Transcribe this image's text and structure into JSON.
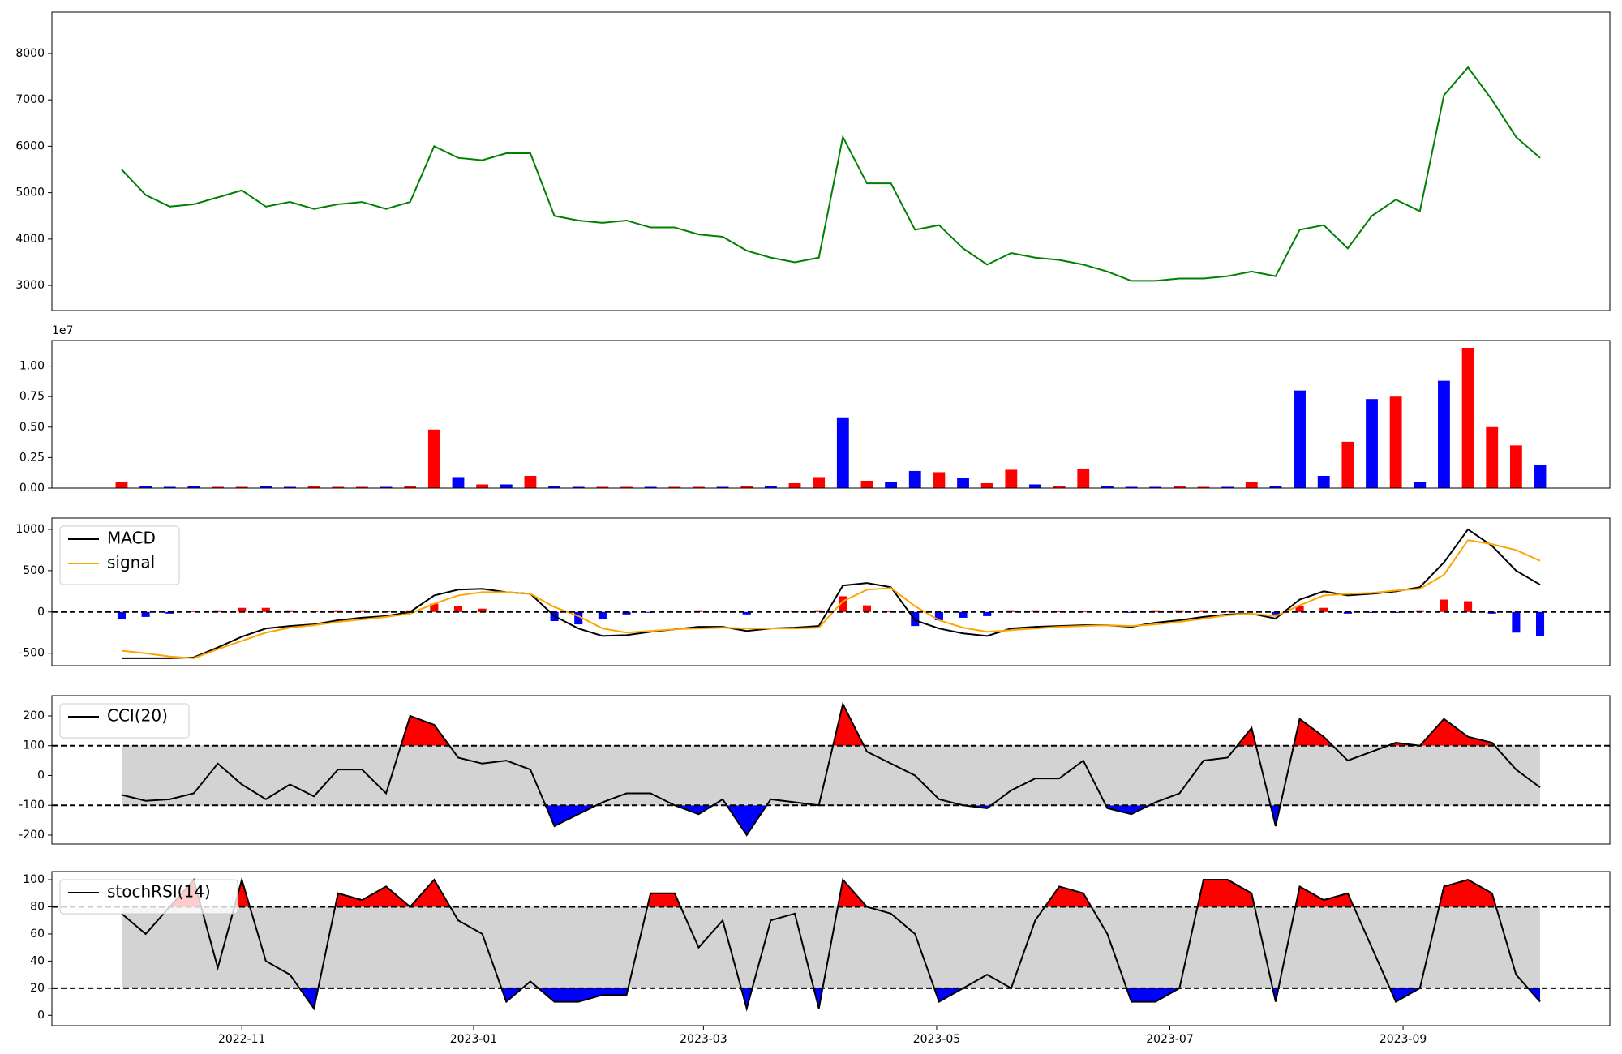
{
  "chart_data": [
    {
      "type": "line",
      "xlim": [
        -2.9,
        61.9
      ],
      "ylim": [
        2460,
        8890
      ],
      "yticks": [
        3000,
        4000,
        5000,
        6000,
        7000,
        8000
      ],
      "series": [
        {
          "color": "green",
          "values": [
            5500,
            4950,
            4700,
            4750,
            4900,
            5050,
            4700,
            4800,
            4650,
            4750,
            4800,
            4650,
            4800,
            6000,
            5750,
            5700,
            5850,
            5850,
            4500,
            4400,
            4350,
            4400,
            4250,
            4250,
            4100,
            4050,
            3750,
            3600,
            3500,
            3600,
            6200,
            5200,
            5200,
            4200,
            4300,
            3800,
            3450,
            3700,
            3600,
            3550,
            3450,
            3300,
            3100,
            3100,
            3150,
            3150,
            3200,
            3300,
            3200,
            4200,
            4300,
            3800,
            4500,
            4850,
            4600,
            7100,
            7700,
            7000,
            6200,
            5750
          ]
        }
      ]
    },
    {
      "type": "bar",
      "xlim": [
        -2.9,
        61.9
      ],
      "ylim": [
        0,
        1.21
      ],
      "y_offset_label": "1e7",
      "yticks": [
        {
          "value": 0,
          "label": "0.00"
        },
        {
          "value": 0.25,
          "label": "0.25"
        },
        {
          "value": 0.5,
          "label": "0.50"
        },
        {
          "value": 0.75,
          "label": "0.75"
        },
        {
          "value": 1.0,
          "label": "1.00"
        }
      ],
      "values": [
        0.05,
        0.02,
        0.01,
        0.02,
        0.01,
        0.01,
        0.02,
        0.01,
        0.02,
        0.01,
        0.01,
        0.01,
        0.02,
        0.48,
        0.09,
        0.03,
        0.03,
        0.1,
        0.02,
        0.01,
        0.01,
        0.01,
        0.01,
        0.01,
        0.01,
        0.01,
        0.02,
        0.02,
        0.04,
        0.09,
        0.58,
        0.06,
        0.05,
        0.14,
        0.13,
        0.08,
        0.04,
        0.15,
        0.03,
        0.02,
        0.16,
        0.02,
        0.01,
        0.01,
        0.02,
        0.01,
        0.01,
        0.05,
        0.02,
        0.8,
        0.1,
        0.38,
        0.73,
        0.75,
        0.05,
        0.88,
        1.15,
        0.5,
        0.35,
        0.19
      ],
      "colors": [
        "red",
        "blue",
        "blue",
        "blue",
        "red",
        "red",
        "blue",
        "blue",
        "red",
        "red",
        "red",
        "blue",
        "red",
        "red",
        "blue",
        "red",
        "blue",
        "red",
        "blue",
        "blue",
        "red",
        "red",
        "blue",
        "red",
        "red",
        "blue",
        "red",
        "blue",
        "red",
        "red",
        "blue",
        "red",
        "blue",
        "blue",
        "red",
        "blue",
        "red",
        "red",
        "blue",
        "red",
        "red",
        "blue",
        "blue",
        "blue",
        "red",
        "red",
        "blue",
        "red",
        "blue",
        "blue",
        "blue",
        "red",
        "blue",
        "red",
        "blue",
        "blue",
        "red",
        "red",
        "red",
        "blue"
      ]
    },
    {
      "type": "line",
      "xlim": [
        -2.9,
        61.9
      ],
      "ylim": [
        -650,
        1137
      ],
      "yticks": [
        -500,
        0,
        500,
        1000
      ],
      "hlines": [
        0
      ],
      "legend": "upper left",
      "series": [
        {
          "name": "MACD",
          "color": "black",
          "values": [
            -560,
            -560,
            -560,
            -550,
            -430,
            -300,
            -200,
            -170,
            -150,
            -100,
            -70,
            -50,
            0,
            200,
            270,
            280,
            240,
            220,
            -50,
            -200,
            -290,
            -280,
            -240,
            -210,
            -180,
            -180,
            -230,
            -200,
            -190,
            -170,
            320,
            350,
            300,
            -100,
            -200,
            -260,
            -290,
            -200,
            -180,
            -170,
            -160,
            -160,
            -180,
            -130,
            -100,
            -60,
            -30,
            -20,
            -80,
            150,
            250,
            200,
            220,
            250,
            300,
            600,
            1000,
            800,
            500,
            330
          ]
        },
        {
          "name": "signal",
          "color": "orange",
          "values": [
            -470,
            -500,
            -540,
            -560,
            -450,
            -350,
            -250,
            -190,
            -160,
            -120,
            -90,
            -60,
            -20,
            100,
            200,
            240,
            240,
            220,
            60,
            -50,
            -200,
            -250,
            -230,
            -210,
            -200,
            -190,
            -200,
            -200,
            -200,
            -190,
            130,
            270,
            290,
            70,
            -100,
            -190,
            -240,
            -220,
            -200,
            -180,
            -170,
            -160,
            -170,
            -150,
            -120,
            -80,
            -40,
            -20,
            -50,
            80,
            200,
            220,
            230,
            260,
            280,
            450,
            870,
            820,
            750,
            620
          ]
        }
      ],
      "histogram": {
        "positive_color": "red",
        "negative_color": "blue",
        "values": [
          -90,
          -60,
          -20,
          10,
          20,
          50,
          50,
          20,
          10,
          20,
          20,
          10,
          20,
          100,
          70,
          40,
          0,
          0,
          -110,
          -150,
          -90,
          -30,
          -10,
          0,
          20,
          10,
          -30,
          0,
          10,
          20,
          190,
          80,
          10,
          -170,
          -100,
          -70,
          -50,
          20,
          20,
          10,
          10,
          0,
          -10,
          20,
          20,
          20,
          10,
          0,
          -30,
          70,
          50,
          -20,
          -10,
          -10,
          20,
          150,
          130,
          -20,
          -250,
          -290
        ]
      }
    },
    {
      "type": "line",
      "xlim": [
        -2.9,
        61.9
      ],
      "ylim": [
        -230,
        268
      ],
      "yticks": [
        -200,
        -100,
        0,
        100,
        200
      ],
      "thresholds": [
        -100,
        100
      ],
      "band_color": "lightgray",
      "above_color": "red",
      "below_color": "blue",
      "legend": "upper left",
      "series": [
        {
          "name": "CCI(20)",
          "color": "black",
          "values": [
            -65,
            -85,
            -80,
            -60,
            40,
            -30,
            -80,
            -30,
            -70,
            20,
            20,
            -60,
            200,
            170,
            60,
            40,
            50,
            20,
            -170,
            -130,
            -90,
            -60,
            -60,
            -100,
            -130,
            -80,
            -200,
            -80,
            -90,
            -100,
            240,
            80,
            40,
            0,
            -80,
            -100,
            -110,
            -50,
            -10,
            -10,
            50,
            -110,
            -130,
            -90,
            -60,
            50,
            60,
            160,
            -170,
            190,
            130,
            50,
            80,
            110,
            100,
            190,
            130,
            110,
            20,
            -40
          ]
        }
      ]
    },
    {
      "type": "line",
      "xlim": [
        -2.9,
        61.9
      ],
      "ylim": [
        -7.6,
        106
      ],
      "yticks": [
        0,
        20,
        40,
        60,
        80,
        100
      ],
      "thresholds": [
        20,
        80
      ],
      "band_color": "lightgray",
      "above_color": "red",
      "below_color": "blue",
      "legend": "upper left",
      "xticks": [
        {
          "value": 5.0,
          "label": "2022-11"
        },
        {
          "value": 14.64,
          "label": "2023-01"
        },
        {
          "value": 24.2,
          "label": "2023-03"
        },
        {
          "value": 33.9,
          "label": "2023-05"
        },
        {
          "value": 43.6,
          "label": "2023-07"
        },
        {
          "value": 53.3,
          "label": "2023-09"
        }
      ],
      "series": [
        {
          "name": "stochRSI(14)",
          "color": "black",
          "values": [
            75,
            60,
            80,
            100,
            35,
            100,
            40,
            30,
            5,
            90,
            85,
            95,
            80,
            100,
            70,
            60,
            10,
            25,
            10,
            10,
            15,
            15,
            90,
            90,
            50,
            70,
            5,
            70,
            75,
            5,
            100,
            80,
            75,
            60,
            10,
            20,
            30,
            20,
            70,
            95,
            90,
            60,
            10,
            10,
            20,
            100,
            100,
            90,
            10,
            95,
            85,
            90,
            50,
            10,
            20,
            95,
            100,
            90,
            30,
            10
          ]
        }
      ]
    }
  ]
}
